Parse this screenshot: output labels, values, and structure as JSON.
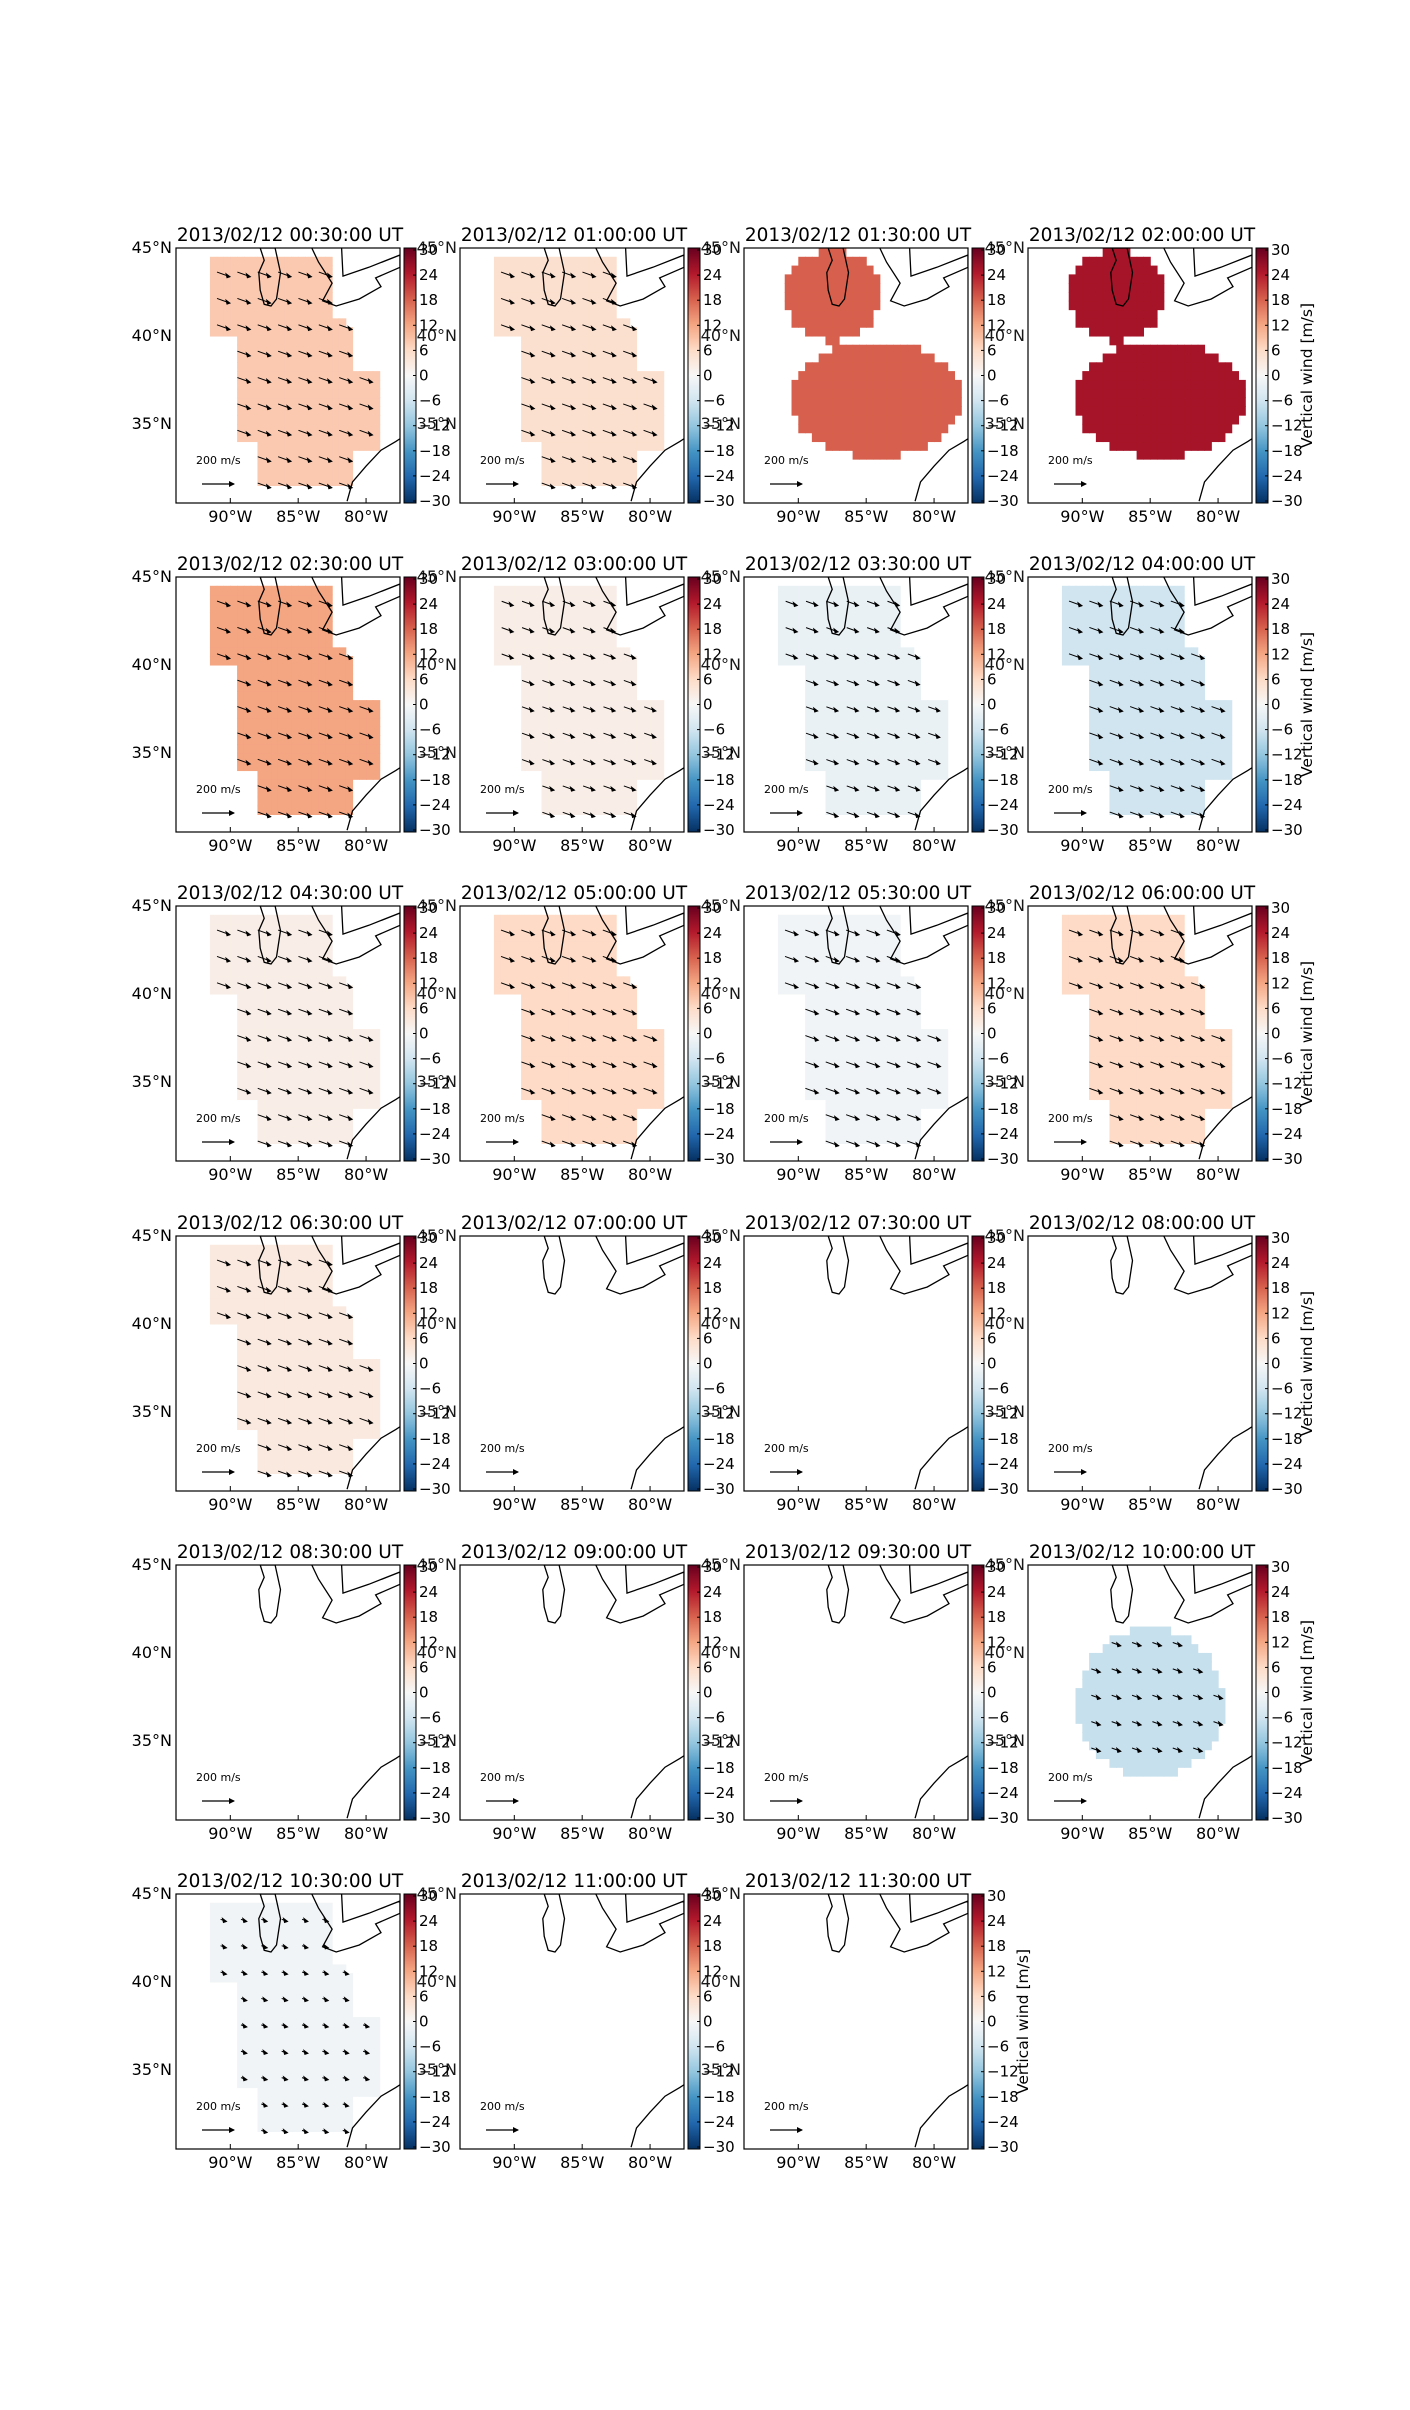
{
  "figure": {
    "panels": [
      {
        "title": "2013/02/12 00:30:00 UT",
        "w": 8,
        "region": "both",
        "arrow_scale": 1.0
      },
      {
        "title": "2013/02/12 01:00:00 UT",
        "w": 5,
        "region": "both",
        "arrow_scale": 1.0
      },
      {
        "title": "2013/02/12 01:30:00 UT",
        "w": 18,
        "region": "blobs",
        "arrow_scale": 0.0
      },
      {
        "title": "2013/02/12 02:00:00 UT",
        "w": 25,
        "region": "blobs",
        "arrow_scale": 0.0
      },
      {
        "title": "2013/02/12 02:30:00 UT",
        "w": 12,
        "region": "both",
        "arrow_scale": 1.0
      },
      {
        "title": "2013/02/12 03:00:00 UT",
        "w": 2,
        "region": "both",
        "arrow_scale": 0.9
      },
      {
        "title": "2013/02/12 03:30:00 UT",
        "w": -2,
        "region": "both",
        "arrow_scale": 0.9
      },
      {
        "title": "2013/02/12 04:00:00 UT",
        "w": -6,
        "region": "both",
        "arrow_scale": 1.0
      },
      {
        "title": "2013/02/12 04:30:00 UT",
        "w": 2,
        "region": "both",
        "arrow_scale": 1.0
      },
      {
        "title": "2013/02/12 05:00:00 UT",
        "w": 6,
        "region": "both",
        "arrow_scale": 1.0
      },
      {
        "title": "2013/02/12 05:30:00 UT",
        "w": -1,
        "region": "both",
        "arrow_scale": 1.0
      },
      {
        "title": "2013/02/12 06:00:00 UT",
        "w": 6,
        "region": "both",
        "arrow_scale": 1.0
      },
      {
        "title": "2013/02/12 06:30:00 UT",
        "w": 3,
        "region": "both",
        "arrow_scale": 1.0
      },
      {
        "title": "2013/02/12 07:00:00 UT",
        "w": 0,
        "region": "none",
        "arrow_scale": 0.0
      },
      {
        "title": "2013/02/12 07:30:00 UT",
        "w": 0,
        "region": "none",
        "arrow_scale": 0.0
      },
      {
        "title": "2013/02/12 08:00:00 UT",
        "w": 0,
        "region": "none",
        "arrow_scale": 0.0
      },
      {
        "title": "2013/02/12 08:30:00 UT",
        "w": 0,
        "region": "none",
        "arrow_scale": 0.0
      },
      {
        "title": "2013/02/12 09:00:00 UT",
        "w": 0,
        "region": "none",
        "arrow_scale": 0.0
      },
      {
        "title": "2013/02/12 09:30:00 UT",
        "w": 0,
        "region": "none",
        "arrow_scale": 0.0
      },
      {
        "title": "2013/02/12 10:00:00 UT",
        "w": -7,
        "region": "south",
        "arrow_scale": 0.7
      },
      {
        "title": "2013/02/12 10:30:00 UT",
        "w": -1,
        "region": "both",
        "arrow_scale": 0.45
      },
      {
        "title": "2013/02/12 11:00:00 UT",
        "w": 0,
        "region": "none",
        "arrow_scale": 0.0
      },
      {
        "title": "2013/02/12 11:30:00 UT",
        "w": 0,
        "region": "none",
        "arrow_scale": 0.0
      }
    ],
    "lon_ticks": [
      "90°W",
      "85°W",
      "80°W"
    ],
    "lat_ticks": [
      "45°N",
      "40°N",
      "35°N"
    ],
    "lat_ticks_overlap": [
      "45°N",
      "40°N",
      "35°N"
    ],
    "colorbar_ticks": [
      "30",
      "24",
      "18",
      "12",
      "6",
      "0",
      "−6",
      "−12",
      "−18",
      "−24",
      "−30"
    ],
    "colorbar_label": "Vertical wind [m/s]",
    "reference_arrow_label": "200 m/s",
    "colormap": {
      "name": "RdBu_r",
      "vmin": -30,
      "vmax": 30
    }
  }
}
